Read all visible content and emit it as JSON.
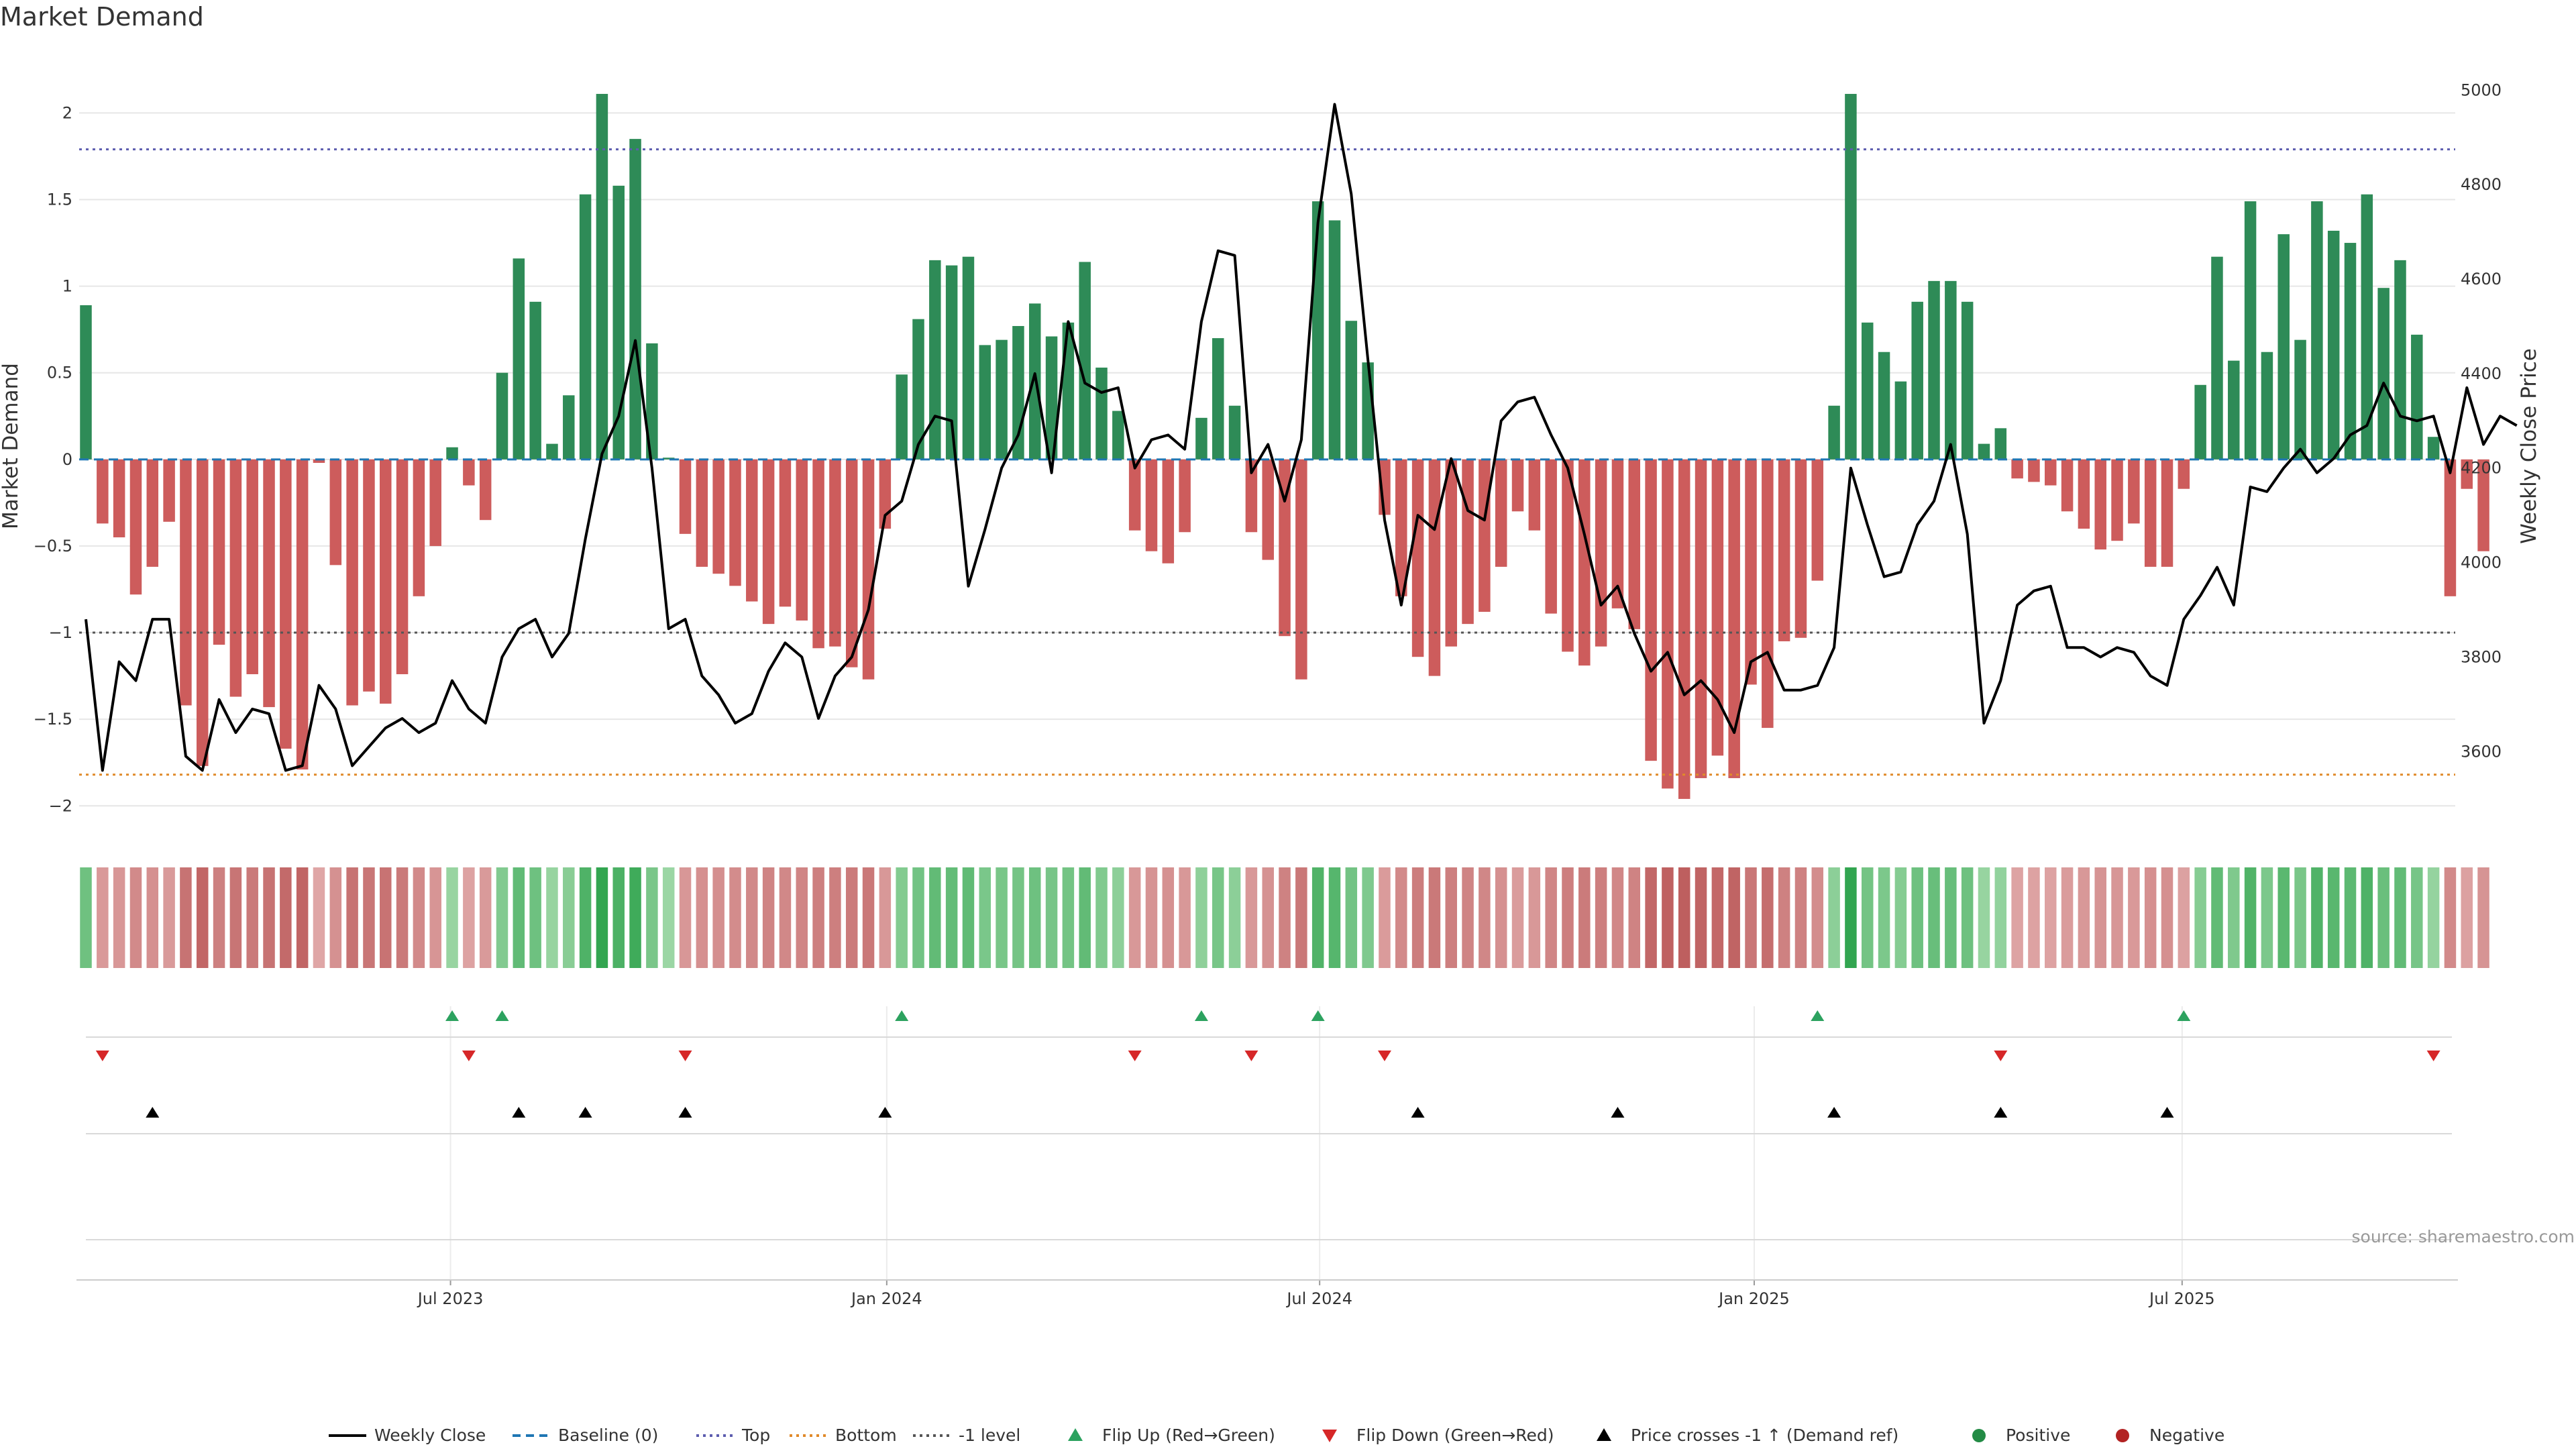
{
  "chart_data": {
    "type": "bar",
    "title": "Market Demand",
    "ylabel_left": "Market Demand",
    "ylabel_right": "Weekly Close Price",
    "source": "source: sharemaestro.com",
    "y_left_range": [
      -2.15,
      2.35
    ],
    "y_left_ticks": [
      "2",
      "1.5",
      "1",
      "0.5",
      "0",
      "−0.5",
      "−1",
      "−1.5",
      "−2"
    ],
    "y_left_tick_values": [
      2,
      1.5,
      1,
      0.5,
      0,
      -0.5,
      -1,
      -1.5,
      -2
    ],
    "y_right_range": [
      3430,
      5080
    ],
    "y_right_ticks": [
      "5000",
      "4800",
      "4600",
      "4400",
      "4200",
      "4000",
      "3800",
      "3600"
    ],
    "y_right_tick_values": [
      5000,
      4800,
      4600,
      4400,
      4200,
      4000,
      3800,
      3600
    ],
    "x_start_index": 0,
    "x_labels": [
      {
        "label": "Jul 2023",
        "index": 21.9
      },
      {
        "label": "Jan 2024",
        "index": 48.1
      },
      {
        "label": "Jul 2024",
        "index": 74.1
      },
      {
        "label": "Jan 2025",
        "index": 100.2
      },
      {
        "label": "Jul 2025",
        "index": 125.9
      }
    ],
    "levels": {
      "top": 1.79,
      "bottom": -1.82,
      "minus_one": -1.0,
      "baseline": 0
    },
    "series": [
      {
        "name": "Market Demand",
        "values": [
          0.89,
          -0.37,
          -0.45,
          -0.78,
          -0.62,
          -0.36,
          -1.42,
          -1.77,
          -1.07,
          -1.37,
          -1.24,
          -1.43,
          -1.67,
          -1.79,
          -0.02,
          -0.61,
          -1.42,
          -1.34,
          -1.41,
          -1.24,
          -0.79,
          -0.5,
          0.07,
          -0.15,
          -0.35,
          0.5,
          1.16,
          0.91,
          0.09,
          0.37,
          1.53,
          2.11,
          1.58,
          1.85,
          0.67,
          0.01,
          -0.43,
          -0.62,
          -0.66,
          -0.73,
          -0.82,
          -0.95,
          -0.85,
          -0.93,
          -1.09,
          -1.08,
          -1.2,
          -1.27,
          -0.4,
          0.49,
          0.81,
          1.15,
          1.12,
          1.17,
          0.66,
          0.69,
          0.77,
          0.9,
          0.71,
          0.79,
          1.14,
          0.53,
          0.28,
          -0.41,
          -0.53,
          -0.6,
          -0.42,
          0.24,
          0.7,
          0.31,
          -0.42,
          -0.58,
          -1.02,
          -1.27,
          1.49,
          1.38,
          0.8,
          0.56,
          -0.32,
          -0.79,
          -1.14,
          -1.25,
          -1.08,
          -0.95,
          -0.88,
          -0.62,
          -0.3,
          -0.41,
          -0.89,
          -1.11,
          -1.19,
          -1.08,
          -0.86,
          -0.98,
          -1.74,
          -1.9,
          -1.96,
          -1.84,
          -1.71,
          -1.84,
          -1.3,
          -1.55,
          -1.05,
          -1.03,
          -0.7,
          0.31,
          2.11,
          0.79,
          0.62,
          0.45,
          0.91,
          1.03,
          1.03,
          0.91,
          0.09,
          0.18,
          -0.11,
          -0.13,
          -0.15,
          -0.3,
          -0.4,
          -0.52,
          -0.47,
          -0.37,
          -0.62,
          -0.62,
          -0.17,
          0.43,
          1.17,
          0.57,
          1.49,
          0.62,
          1.3,
          0.69,
          1.49,
          1.32,
          1.25,
          1.53,
          0.99,
          1.15,
          0.72,
          0.13,
          -0.79,
          -0.17,
          -0.53
        ]
      },
      {
        "name": "Weekly Close",
        "values": [
          3880,
          3560,
          3790,
          3750,
          3880,
          3880,
          3590,
          3560,
          3710,
          3640,
          3690,
          3680,
          3560,
          3570,
          3740,
          3690,
          3570,
          3610,
          3650,
          3670,
          3640,
          3660,
          3750,
          3690,
          3660,
          3800,
          3860,
          3880,
          3800,
          3850,
          4050,
          4230,
          4310,
          4470,
          4200,
          3860,
          3880,
          3760,
          3720,
          3660,
          3680,
          3770,
          3830,
          3800,
          3670,
          3760,
          3800,
          3900,
          4100,
          4130,
          4250,
          4310,
          4300,
          3950,
          4070,
          4200,
          4270,
          4400,
          4190,
          4510,
          4380,
          4360,
          4370,
          4200,
          4260,
          4270,
          4240,
          4510,
          4660,
          4650,
          4190,
          4250,
          4130,
          4260,
          4720,
          4970,
          4780,
          4430,
          4090,
          3910,
          4100,
          4070,
          4220,
          4110,
          4090,
          4300,
          4340,
          4350,
          4270,
          4200,
          4060,
          3910,
          3950,
          3850,
          3770,
          3810,
          3720,
          3750,
          3710,
          3640,
          3790,
          3810,
          3730,
          3730,
          3740,
          3820,
          4200,
          4080,
          3970,
          3980,
          4080,
          4130,
          4250,
          4060,
          3660,
          3750,
          3910,
          3940,
          3950,
          3820,
          3820,
          3800,
          3820,
          3810,
          3760,
          3740,
          3880,
          3930,
          3990,
          3910,
          4160,
          4150,
          4200,
          4240,
          4190,
          4220,
          4270,
          4290,
          4380,
          4310,
          4300,
          4310,
          4190,
          4370,
          4250,
          4310,
          4290
        ]
      },
      {
        "name": "Baseline (0)"
      },
      {
        "name": "Top"
      },
      {
        "name": "Bottom"
      },
      {
        "name": "−1 level"
      },
      {
        "name": "Flip Up (Red→Green)",
        "indices": [
          22,
          25,
          49,
          67,
          74,
          104,
          126
        ]
      },
      {
        "name": "Flip Down (Green→Red)",
        "indices": [
          1,
          23,
          36,
          63,
          70,
          78,
          115,
          141
        ]
      },
      {
        "name": "Price crosses −1 ↑ (Demand ref)",
        "indices": [
          4,
          26,
          30,
          36,
          48,
          80,
          92,
          105,
          115,
          125
        ]
      },
      {
        "name": "Positive"
      },
      {
        "name": "Negative"
      }
    ],
    "legend": [
      {
        "label": "Weekly Close",
        "key": "line-solid",
        "color": "#000000"
      },
      {
        "label": "Baseline (0)",
        "key": "line-dash",
        "color": "#1f77b4"
      },
      {
        "label": "Top",
        "key": "line-dot",
        "color": "#5d5daf"
      },
      {
        "label": "Bottom",
        "key": "line-dot",
        "color": "#e08a2a"
      },
      {
        "label": "-1 level",
        "key": "line-dot",
        "color": "#555555"
      },
      {
        "label": "Flip Up (Red→Green)",
        "key": "tri-up",
        "color": "#2ca25f"
      },
      {
        "label": "Flip Down (Green→Red)",
        "key": "tri-down",
        "color": "#d62728"
      },
      {
        "label": "Price crosses -1 ↑ (Demand ref)",
        "key": "tri-up",
        "color": "#000000"
      },
      {
        "label": "Positive",
        "key": "dot",
        "color": "#238b45"
      },
      {
        "label": "Negative",
        "key": "dot",
        "color": "#b22222"
      }
    ],
    "colors": {
      "positive_bar": "#2e8b57",
      "negative_bar": "#cd5c5c",
      "price_line": "#000000",
      "baseline": "#1f77b4",
      "top": "#5d5daf",
      "bottom": "#e08a2a",
      "minus_one": "#555555",
      "flip_up": "#2ca25f",
      "flip_down": "#d62728",
      "cross_up": "#000000"
    }
  }
}
